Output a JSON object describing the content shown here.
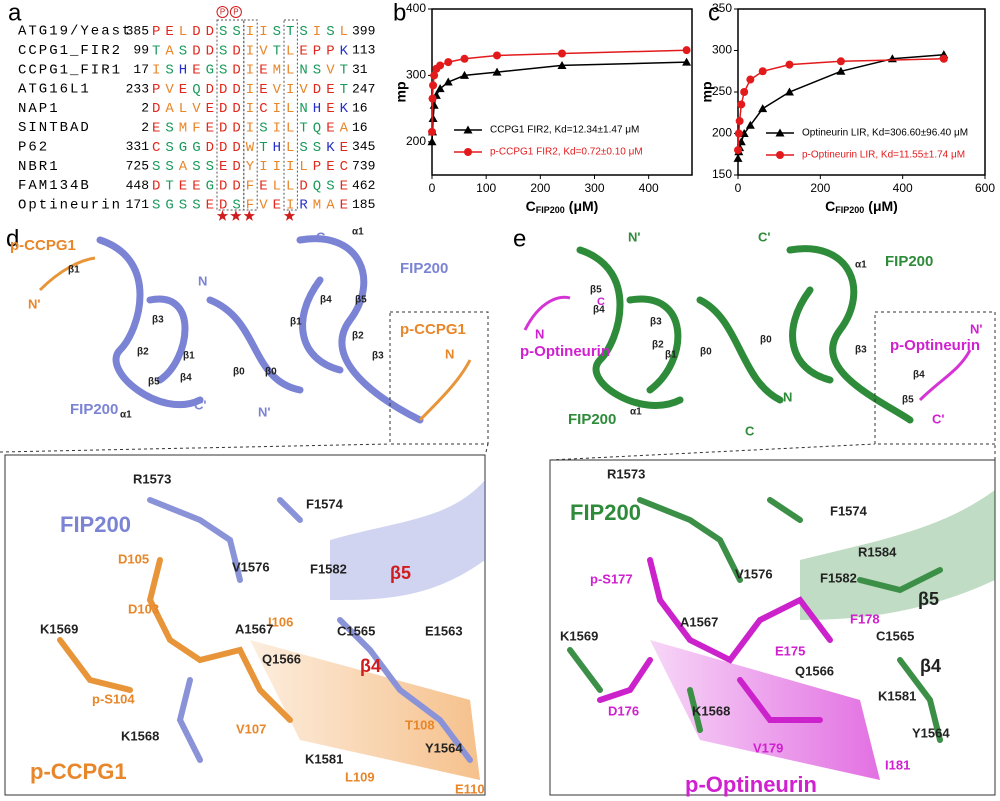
{
  "panel_labels": [
    "a",
    "b",
    "c",
    "d",
    "e"
  ],
  "alignment": {
    "phospho_marks": [
      "P",
      "P"
    ],
    "rows": [
      {
        "name": "ATG19/Yeast",
        "start": 385,
        "sequence": "PELDDSSIISTSISL",
        "end": 399
      },
      {
        "name": "CCPG1_FIR2",
        "start": 99,
        "sequence": "TASDDSDIVTLEPPK",
        "end": 113
      },
      {
        "name": "CCPG1_FIR1",
        "start": 17,
        "sequence": "ISHEGSDIEMLNSVT",
        "end": 31
      },
      {
        "name": "ATG16L1",
        "start": 233,
        "sequence": "PVEQDDDIEVIVDET",
        "end": 247
      },
      {
        "name": "NAP1",
        "start": 2,
        "sequence": "DALVEDDICILNHEK",
        "end": 16
      },
      {
        "name": "SINTBAD",
        "start": 2,
        "sequence": "ESMFEDDISILTQEA",
        "end": 16
      },
      {
        "name": "P62",
        "start": 331,
        "sequence": "CSGGDDDWTHLSSKE",
        "end": 345
      },
      {
        "name": "NBR1",
        "start": 725,
        "sequence": "SSASSEDYIIILPEC",
        "end": 739
      },
      {
        "name": "FAM134B",
        "start": 448,
        "sequence": "DTEEGDDFELLDQSE",
        "end": 462
      },
      {
        "name": "Optineurin",
        "start": 171,
        "sequence": "SGSSEDSFVEIRMAE",
        "end": 185
      }
    ]
  },
  "chart_data": [
    {
      "type": "line",
      "ylabel": "mp",
      "xlabel": "C",
      "xlabel_sub": "FIP200",
      "xlabel_unit": "(μM)",
      "xlim": [
        0,
        480
      ],
      "xticks": [
        0,
        100,
        200,
        300,
        400
      ],
      "ylim": [
        150,
        400
      ],
      "yticks": [
        200,
        300,
        400
      ],
      "series": [
        {
          "name": "CCPG1 FIR2, Kd=12.34±1.47 μM",
          "color": "#000000",
          "marker": "triangle",
          "x": [
            0,
            1,
            2,
            4,
            8,
            15,
            30,
            60,
            120,
            240,
            470
          ],
          "values": [
            200,
            215,
            235,
            255,
            270,
            280,
            290,
            300,
            305,
            315,
            320
          ]
        },
        {
          "name": "p-CCPG1 FIR2, Kd=0.72±0.10 μM",
          "color": "#e31a1c",
          "marker": "circle",
          "x": [
            0,
            1,
            2,
            4,
            8,
            15,
            30,
            60,
            120,
            240,
            470
          ],
          "values": [
            215,
            265,
            285,
            300,
            310,
            315,
            320,
            325,
            330,
            333,
            338
          ]
        }
      ]
    },
    {
      "type": "line",
      "ylabel": "mp",
      "xlabel": "C",
      "xlabel_sub": "FIP200",
      "xlabel_unit": "(μM)",
      "xlim": [
        0,
        600
      ],
      "xticks": [
        0,
        200,
        400,
        600
      ],
      "ylim": [
        150,
        350
      ],
      "yticks": [
        150,
        200,
        250,
        300,
        350
      ],
      "series": [
        {
          "name": "Optineurin LIR, Kd=306.60±96.40 μM",
          "color": "#000000",
          "marker": "triangle",
          "x": [
            0,
            2,
            4,
            8,
            15,
            30,
            60,
            125,
            250,
            375,
            500
          ],
          "values": [
            170,
            178,
            183,
            190,
            200,
            210,
            230,
            250,
            275,
            290,
            295
          ]
        },
        {
          "name": "p-Optineurin LIR, Kd=11.55±1.74 μM",
          "color": "#e31a1c",
          "marker": "circle",
          "x": [
            0,
            2,
            4,
            8,
            15,
            30,
            60,
            125,
            250,
            500
          ],
          "values": [
            180,
            200,
            215,
            235,
            250,
            265,
            275,
            283,
            287,
            290
          ]
        }
      ]
    }
  ],
  "panel_d": {
    "overview_labels": [
      "p-CCPG1",
      "β1",
      "N'",
      "FIP200",
      "α1",
      "C",
      "N",
      "β3",
      "β2",
      "β1",
      "β4",
      "β5",
      "β0",
      "β0",
      "β4",
      "β5",
      "β1",
      "β2",
      "β3",
      "p-CCPG1",
      "N",
      "FIP200",
      "α1",
      "C'",
      "N'"
    ],
    "detail_labels": [
      "R1573",
      "F1574",
      "FIP200",
      "D105",
      "V1576",
      "F1582",
      "β5",
      "K1569",
      "D103",
      "I106",
      "A1567",
      "C1565",
      "E1563",
      "β4",
      "Q1566",
      "p-S104",
      "K1568",
      "V107",
      "T108",
      "Y1564",
      "K1581",
      "L109",
      "E110",
      "p-CCPG1"
    ]
  },
  "panel_e": {
    "overview_labels": [
      "N'",
      "C'",
      "FIP200",
      "α1",
      "β5",
      "β4",
      "β3",
      "β2",
      "β1",
      "β0",
      "β0",
      "p-Optineurin",
      "N",
      "C",
      "FIP200",
      "α1",
      "C",
      "N",
      "p-Optineurin",
      "N'",
      "β4",
      "β5",
      "C'",
      "β3"
    ],
    "detail_labels": [
      "R1573",
      "FIP200",
      "F1574",
      "R1584",
      "p-S177",
      "V1576",
      "F1582",
      "β5",
      "F178",
      "A1567",
      "C1565",
      "K1569",
      "E175",
      "Q1566",
      "β4",
      "K1581",
      "D176",
      "K1568",
      "Y1564",
      "V179",
      "I181",
      "p-Optineurin"
    ]
  }
}
